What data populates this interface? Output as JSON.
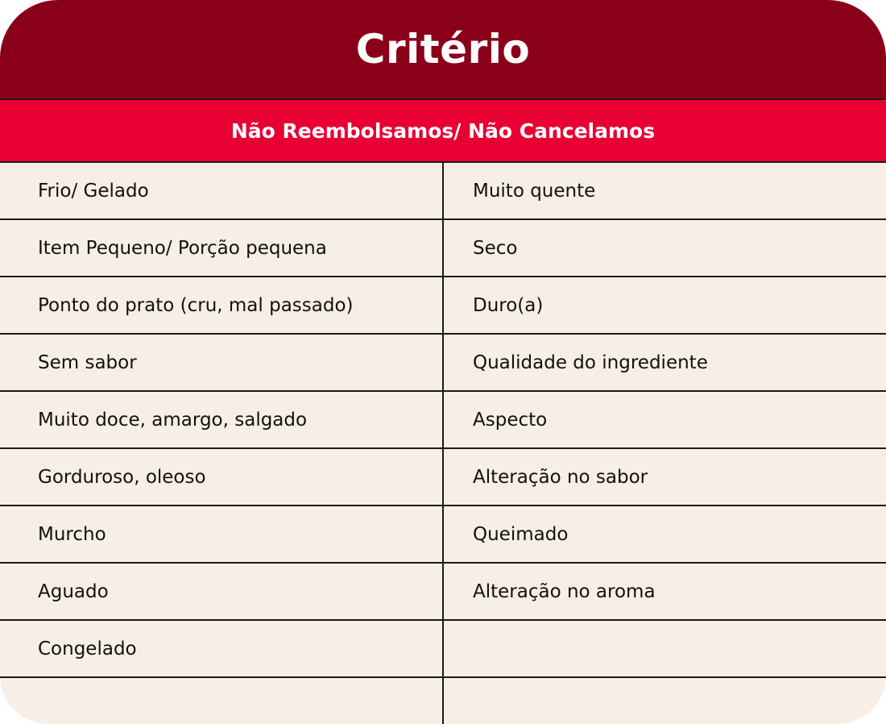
{
  "title": "Critério",
  "subtitle": "Não Reembolsamos/ Não Cancelamos",
  "colors": {
    "title_bg": "#8a0019",
    "subtitle_bg": "#e80033",
    "body_bg": "#f7efe6"
  },
  "rows": [
    {
      "left": "Frio/ Gelado",
      "right": "Muito quente"
    },
    {
      "left": "Item Pequeno/ Porção pequena",
      "right": "Seco"
    },
    {
      "left": "Ponto do prato (cru, mal passado)",
      "right": "Duro(a)"
    },
    {
      "left": "Sem sabor",
      "right": "Qualidade do ingrediente"
    },
    {
      "left": "Muito doce, amargo, salgado",
      "right": "Aspecto"
    },
    {
      "left": "Gorduroso, oleoso",
      "right": "Alteração no sabor"
    },
    {
      "left": "Murcho",
      "right": "Queimado"
    },
    {
      "left": "Aguado",
      "right": "Alteração no aroma"
    },
    {
      "left": "Congelado",
      "right": ""
    },
    {
      "left": "",
      "right": ""
    }
  ]
}
